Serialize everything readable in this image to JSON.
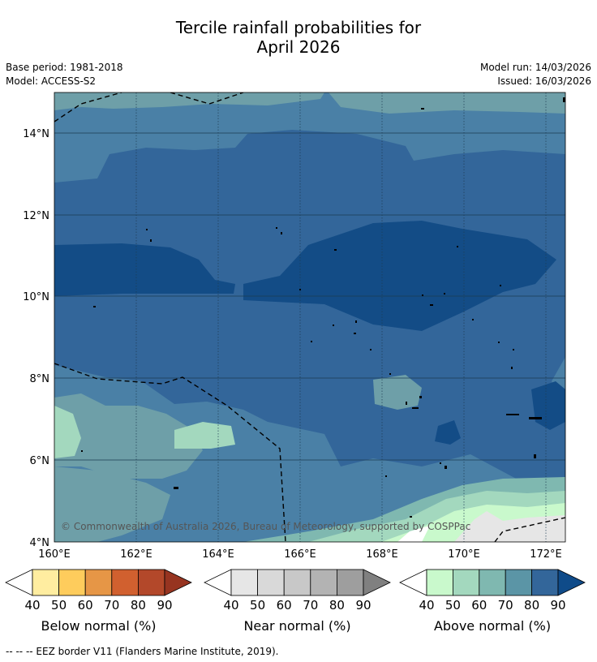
{
  "title_line1": "Tercile rainfall probabilities for",
  "title_line2": "April 2026",
  "base_period": "Base period: 1981-2018",
  "model": "Model: ACCESS-S2",
  "model_run": "Model run: 14/03/2026",
  "issued": "Issued: 16/03/2026",
  "copyright": "© Commonwealth of Australia 2026, Bureau of Meteorology, supported by COSPPac",
  "map": {
    "lon_range": [
      160,
      172.5
    ],
    "lat_range": [
      4,
      15
    ],
    "lon_ticks": [
      "160°E",
      "162°E",
      "164°E",
      "166°E",
      "168°E",
      "170°E",
      "172°E"
    ],
    "lat_ticks": [
      "4°N",
      "6°N",
      "8°N",
      "10°N",
      "12°N",
      "14°N"
    ]
  },
  "colorbars": [
    {
      "label": "Below normal (%)",
      "ticks": [
        "40",
        "50",
        "60",
        "70",
        "80",
        "90"
      ],
      "colors": [
        "#ffffff",
        "#ffeda0",
        "#fecc5c",
        "#e69646",
        "#d1602f",
        "#b3482a",
        "#973420"
      ]
    },
    {
      "label": "Near normal (%)",
      "ticks": [
        "40",
        "50",
        "60",
        "70",
        "80",
        "90"
      ],
      "colors": [
        "#ffffff",
        "#e6e6e6",
        "#d9d9d9",
        "#c8c8c8",
        "#b3b3b3",
        "#9e9e9e",
        "#808080"
      ]
    },
    {
      "label": "Above normal (%)",
      "ticks": [
        "40",
        "50",
        "60",
        "70",
        "80",
        "90"
      ],
      "colors": [
        "#ffffff",
        "#c9f9cc",
        "#a3d8be",
        "#7fb8b0",
        "#5b95a6",
        "#33669a",
        "#0f4b89"
      ]
    }
  ],
  "legend_note": "--  --  -- EEZ border V11 (Flanders Marine Institute, 2019)."
}
